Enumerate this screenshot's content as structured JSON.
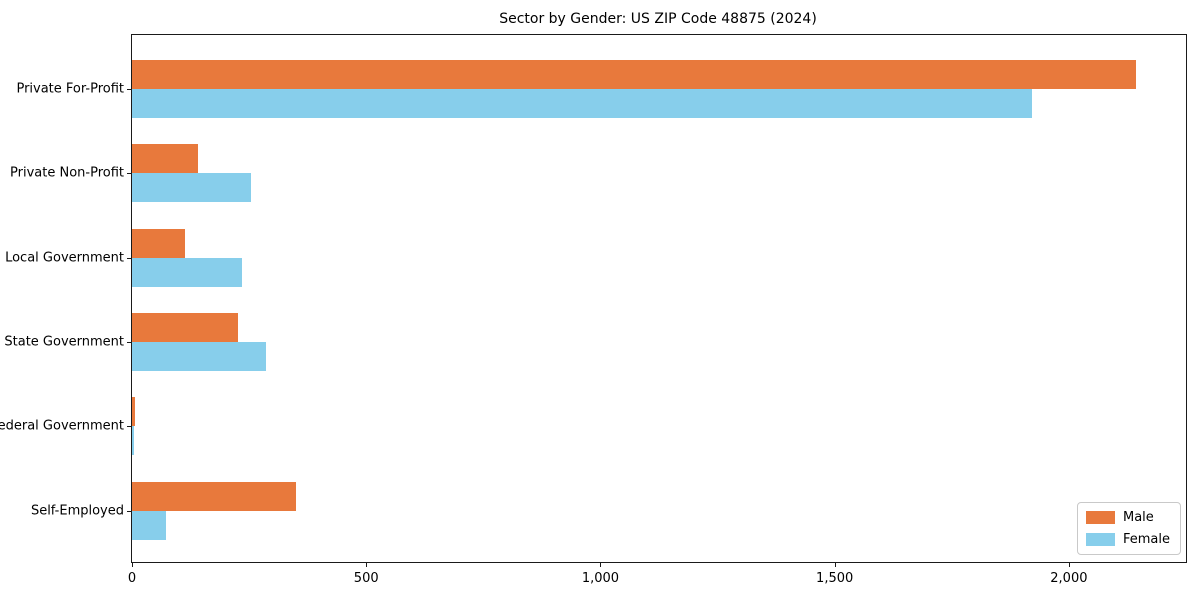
{
  "title": "Sector by Gender: US ZIP Code 48875 (2024)",
  "colors": {
    "male": "#E8793C",
    "female": "#87CEEB",
    "axis": "#1a1a1a",
    "background": "#ffffff"
  },
  "legend": {
    "items": [
      {
        "label": "Male",
        "color": "#E8793C"
      },
      {
        "label": "Female",
        "color": "#87CEEB"
      }
    ],
    "position": "lower right"
  },
  "chart_data": {
    "type": "bar",
    "orientation": "horizontal",
    "title": "Sector by Gender: US ZIP Code 48875 (2024)",
    "categories": [
      "Private For-Profit",
      "Private Non-Profit",
      "Local Government",
      "State Government",
      "Federal Government",
      "Self-Employed"
    ],
    "series": [
      {
        "name": "Male",
        "color": "#E8793C",
        "values": [
          2144,
          140,
          114,
          226,
          6,
          351
        ]
      },
      {
        "name": "Female",
        "color": "#87CEEB",
        "values": [
          1921,
          254,
          235,
          286,
          4,
          73
        ]
      }
    ],
    "xlabel": "",
    "ylabel": "",
    "xlim": [
      0,
      2250
    ],
    "xticks": {
      "values": [
        0,
        500,
        1000,
        1500,
        2000
      ],
      "labels": [
        "0",
        "500",
        "1,000",
        "1,500",
        "2,000"
      ]
    },
    "grid": false,
    "legend_position": "lower right",
    "background": "#ffffff"
  }
}
